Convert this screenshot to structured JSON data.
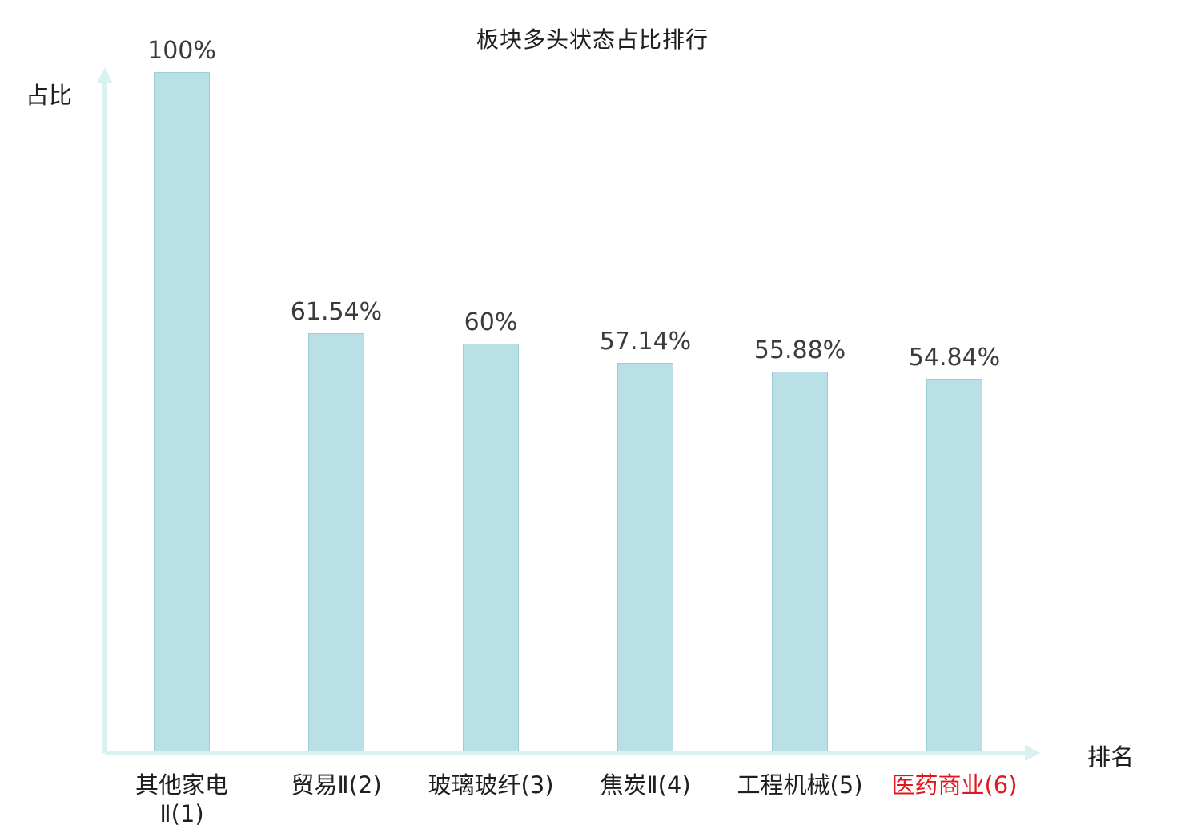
{
  "title": "板块多头状态占比排行",
  "ylabel": "占比",
  "xlabel": "排名",
  "chart_data": {
    "type": "bar",
    "title": "板块多头状态占比排行",
    "xlabel": "排名",
    "ylabel": "占比",
    "categories": [
      "其他家电\nⅡ(1)",
      "贸易Ⅱ(2)",
      "玻璃玻纤(3)",
      "焦炭Ⅱ(4)",
      "工程机械(5)",
      "医药商业(6)"
    ],
    "values": [
      100,
      61.54,
      60,
      57.14,
      55.88,
      54.84
    ],
    "value_labels": [
      "100%",
      "61.54%",
      "60%",
      "57.14%",
      "55.88%",
      "54.84%"
    ],
    "ylim": [
      0,
      100
    ],
    "grid": false,
    "legend": "none",
    "bar_color": "#b9e0e4",
    "bar_border_color": "#9bced6",
    "axis_color": "#d9f1ef",
    "value_label_color": "#3b3b3b",
    "tick_label_color": "#1f1f1f",
    "highlight_index": 5,
    "highlight_color": "#e0181e"
  }
}
